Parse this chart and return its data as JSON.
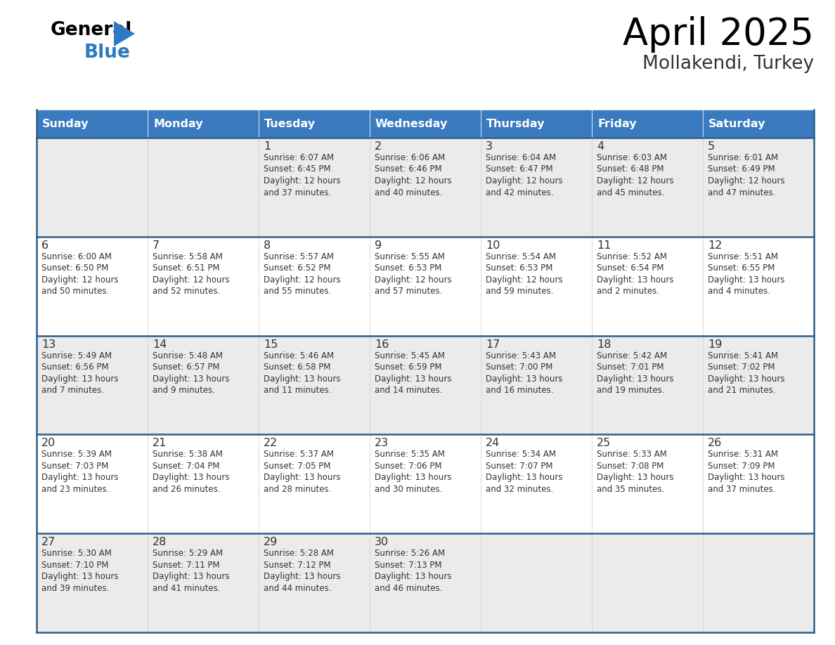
{
  "title": "April 2025",
  "subtitle": "Mollakendi, Turkey",
  "header_color": "#3a7abf",
  "header_text_color": "#ffffff",
  "cell_bg_light": "#ebebeb",
  "cell_bg_white": "#ffffff",
  "border_color": "#2e5f8a",
  "grid_color": "#cccccc",
  "text_color": "#333333",
  "days_of_week": [
    "Sunday",
    "Monday",
    "Tuesday",
    "Wednesday",
    "Thursday",
    "Friday",
    "Saturday"
  ],
  "weeks": [
    [
      {
        "day": "",
        "lines": []
      },
      {
        "day": "",
        "lines": []
      },
      {
        "day": "1",
        "lines": [
          "Sunrise: 6:07 AM",
          "Sunset: 6:45 PM",
          "Daylight: 12 hours",
          "and 37 minutes."
        ]
      },
      {
        "day": "2",
        "lines": [
          "Sunrise: 6:06 AM",
          "Sunset: 6:46 PM",
          "Daylight: 12 hours",
          "and 40 minutes."
        ]
      },
      {
        "day": "3",
        "lines": [
          "Sunrise: 6:04 AM",
          "Sunset: 6:47 PM",
          "Daylight: 12 hours",
          "and 42 minutes."
        ]
      },
      {
        "day": "4",
        "lines": [
          "Sunrise: 6:03 AM",
          "Sunset: 6:48 PM",
          "Daylight: 12 hours",
          "and 45 minutes."
        ]
      },
      {
        "day": "5",
        "lines": [
          "Sunrise: 6:01 AM",
          "Sunset: 6:49 PM",
          "Daylight: 12 hours",
          "and 47 minutes."
        ]
      }
    ],
    [
      {
        "day": "6",
        "lines": [
          "Sunrise: 6:00 AM",
          "Sunset: 6:50 PM",
          "Daylight: 12 hours",
          "and 50 minutes."
        ]
      },
      {
        "day": "7",
        "lines": [
          "Sunrise: 5:58 AM",
          "Sunset: 6:51 PM",
          "Daylight: 12 hours",
          "and 52 minutes."
        ]
      },
      {
        "day": "8",
        "lines": [
          "Sunrise: 5:57 AM",
          "Sunset: 6:52 PM",
          "Daylight: 12 hours",
          "and 55 minutes."
        ]
      },
      {
        "day": "9",
        "lines": [
          "Sunrise: 5:55 AM",
          "Sunset: 6:53 PM",
          "Daylight: 12 hours",
          "and 57 minutes."
        ]
      },
      {
        "day": "10",
        "lines": [
          "Sunrise: 5:54 AM",
          "Sunset: 6:53 PM",
          "Daylight: 12 hours",
          "and 59 minutes."
        ]
      },
      {
        "day": "11",
        "lines": [
          "Sunrise: 5:52 AM",
          "Sunset: 6:54 PM",
          "Daylight: 13 hours",
          "and 2 minutes."
        ]
      },
      {
        "day": "12",
        "lines": [
          "Sunrise: 5:51 AM",
          "Sunset: 6:55 PM",
          "Daylight: 13 hours",
          "and 4 minutes."
        ]
      }
    ],
    [
      {
        "day": "13",
        "lines": [
          "Sunrise: 5:49 AM",
          "Sunset: 6:56 PM",
          "Daylight: 13 hours",
          "and 7 minutes."
        ]
      },
      {
        "day": "14",
        "lines": [
          "Sunrise: 5:48 AM",
          "Sunset: 6:57 PM",
          "Daylight: 13 hours",
          "and 9 minutes."
        ]
      },
      {
        "day": "15",
        "lines": [
          "Sunrise: 5:46 AM",
          "Sunset: 6:58 PM",
          "Daylight: 13 hours",
          "and 11 minutes."
        ]
      },
      {
        "day": "16",
        "lines": [
          "Sunrise: 5:45 AM",
          "Sunset: 6:59 PM",
          "Daylight: 13 hours",
          "and 14 minutes."
        ]
      },
      {
        "day": "17",
        "lines": [
          "Sunrise: 5:43 AM",
          "Sunset: 7:00 PM",
          "Daylight: 13 hours",
          "and 16 minutes."
        ]
      },
      {
        "day": "18",
        "lines": [
          "Sunrise: 5:42 AM",
          "Sunset: 7:01 PM",
          "Daylight: 13 hours",
          "and 19 minutes."
        ]
      },
      {
        "day": "19",
        "lines": [
          "Sunrise: 5:41 AM",
          "Sunset: 7:02 PM",
          "Daylight: 13 hours",
          "and 21 minutes."
        ]
      }
    ],
    [
      {
        "day": "20",
        "lines": [
          "Sunrise: 5:39 AM",
          "Sunset: 7:03 PM",
          "Daylight: 13 hours",
          "and 23 minutes."
        ]
      },
      {
        "day": "21",
        "lines": [
          "Sunrise: 5:38 AM",
          "Sunset: 7:04 PM",
          "Daylight: 13 hours",
          "and 26 minutes."
        ]
      },
      {
        "day": "22",
        "lines": [
          "Sunrise: 5:37 AM",
          "Sunset: 7:05 PM",
          "Daylight: 13 hours",
          "and 28 minutes."
        ]
      },
      {
        "day": "23",
        "lines": [
          "Sunrise: 5:35 AM",
          "Sunset: 7:06 PM",
          "Daylight: 13 hours",
          "and 30 minutes."
        ]
      },
      {
        "day": "24",
        "lines": [
          "Sunrise: 5:34 AM",
          "Sunset: 7:07 PM",
          "Daylight: 13 hours",
          "and 32 minutes."
        ]
      },
      {
        "day": "25",
        "lines": [
          "Sunrise: 5:33 AM",
          "Sunset: 7:08 PM",
          "Daylight: 13 hours",
          "and 35 minutes."
        ]
      },
      {
        "day": "26",
        "lines": [
          "Sunrise: 5:31 AM",
          "Sunset: 7:09 PM",
          "Daylight: 13 hours",
          "and 37 minutes."
        ]
      }
    ],
    [
      {
        "day": "27",
        "lines": [
          "Sunrise: 5:30 AM",
          "Sunset: 7:10 PM",
          "Daylight: 13 hours",
          "and 39 minutes."
        ]
      },
      {
        "day": "28",
        "lines": [
          "Sunrise: 5:29 AM",
          "Sunset: 7:11 PM",
          "Daylight: 13 hours",
          "and 41 minutes."
        ]
      },
      {
        "day": "29",
        "lines": [
          "Sunrise: 5:28 AM",
          "Sunset: 7:12 PM",
          "Daylight: 13 hours",
          "and 44 minutes."
        ]
      },
      {
        "day": "30",
        "lines": [
          "Sunrise: 5:26 AM",
          "Sunset: 7:13 PM",
          "Daylight: 13 hours",
          "and 46 minutes."
        ]
      },
      {
        "day": "",
        "lines": []
      },
      {
        "day": "",
        "lines": []
      },
      {
        "day": "",
        "lines": []
      }
    ]
  ]
}
